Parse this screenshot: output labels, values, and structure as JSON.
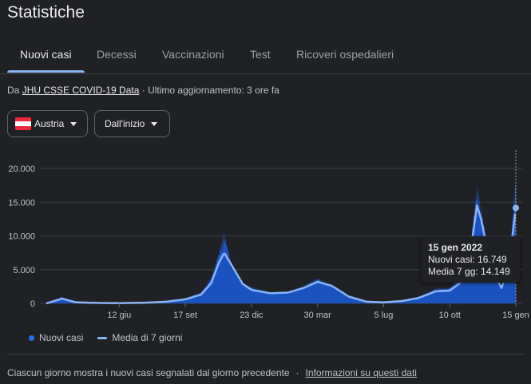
{
  "header": {
    "title": "Statistiche"
  },
  "tabs": [
    {
      "label": "Nuovi casi",
      "active": true
    },
    {
      "label": "Decessi"
    },
    {
      "label": "Vaccinazioni"
    },
    {
      "label": "Test"
    },
    {
      "label": "Ricoveri ospedalieri"
    }
  ],
  "source": {
    "prefix": "Da",
    "link": "JHU CSSE COVID-19 Data",
    "updated": "· Ultimo aggiornamento: 3 ore fa"
  },
  "filters": {
    "country": "Austria",
    "range": "Dall'inizio"
  },
  "tooltip": {
    "date": "15 gen 2022",
    "cases": "Nuovi casi: 16.749",
    "avg": "Media 7 gg: 14.149"
  },
  "legend": {
    "cases": "Nuovi casi",
    "avg": "Media di 7 giorni"
  },
  "footer": {
    "note": "Ciascun giorno mostra i nuovi casi segnalati dal giorno precedente",
    "sep": "·",
    "link": "Informazioni su questi dati"
  },
  "colors": {
    "bars": "#1a56c8",
    "avg_line": "#8ab4f8",
    "background": "#202124"
  },
  "chart_data": {
    "type": "bar",
    "ylim": [
      0,
      20000
    ],
    "y_ticks": [
      "0",
      "5.000",
      "10.000",
      "15.000",
      "20.000"
    ],
    "x_ticks": [
      "12 giu",
      "17 set",
      "23 dic",
      "30 mar",
      "5 lug",
      "10 ott",
      "15 gen"
    ],
    "series": [
      {
        "name": "Nuovi casi",
        "x": [
          "2020-02-26",
          "2020-03-20",
          "2020-04-10",
          "2020-05-15",
          "2020-06-12",
          "2020-07-20",
          "2020-08-20",
          "2020-09-17",
          "2020-10-10",
          "2020-10-25",
          "2020-11-05",
          "2020-11-13",
          "2020-11-25",
          "2020-12-10",
          "2020-12-23",
          "2021-01-20",
          "2021-02-15",
          "2021-03-10",
          "2021-03-30",
          "2021-04-20",
          "2021-05-15",
          "2021-06-10",
          "2021-07-05",
          "2021-08-01",
          "2021-08-25",
          "2021-09-20",
          "2021-10-10",
          "2021-10-25",
          "2021-11-10",
          "2021-11-19",
          "2021-11-25",
          "2021-12-10",
          "2021-12-25",
          "2022-01-05",
          "2022-01-15"
        ],
        "values": [
          0,
          900,
          100,
          60,
          40,
          120,
          300,
          700,
          1500,
          3500,
          6800,
          9500,
          5000,
          2800,
          2200,
          1500,
          1600,
          2400,
          3400,
          2500,
          900,
          200,
          150,
          400,
          900,
          2000,
          2100,
          3500,
          8500,
          15800,
          13000,
          5200,
          2400,
          6500,
          16749
        ]
      },
      {
        "name": "Media di 7 giorni",
        "x": [
          "2020-02-26",
          "2020-03-20",
          "2020-04-10",
          "2020-05-15",
          "2020-06-12",
          "2020-07-20",
          "2020-08-20",
          "2020-09-17",
          "2020-10-10",
          "2020-10-25",
          "2020-11-05",
          "2020-11-13",
          "2020-11-25",
          "2020-12-10",
          "2020-12-23",
          "2021-01-20",
          "2021-02-15",
          "2021-03-10",
          "2021-03-30",
          "2021-04-20",
          "2021-05-15",
          "2021-06-10",
          "2021-07-05",
          "2021-08-01",
          "2021-08-25",
          "2021-09-20",
          "2021-10-10",
          "2021-10-25",
          "2021-11-10",
          "2021-11-19",
          "2021-11-25",
          "2021-12-10",
          "2021-12-25",
          "2022-01-05",
          "2022-01-15"
        ],
        "values": [
          0,
          700,
          150,
          60,
          40,
          100,
          250,
          600,
          1300,
          3000,
          6000,
          7500,
          5500,
          2900,
          2000,
          1500,
          1600,
          2300,
          3200,
          2600,
          1000,
          250,
          150,
          350,
          800,
          1800,
          1900,
          3000,
          8000,
          14500,
          12500,
          5000,
          2300,
          5500,
          14149
        ]
      }
    ]
  }
}
